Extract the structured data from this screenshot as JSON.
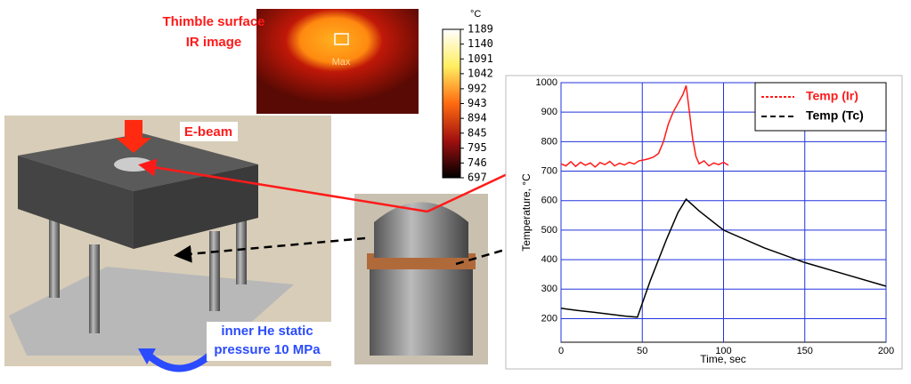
{
  "chart_data": [
    {
      "type": "line",
      "x_label": "Time, sec",
      "y_label": "Temperature, °C",
      "xlim": [
        0,
        200
      ],
      "ylim": [
        120,
        1000
      ],
      "xticks": [
        0,
        50,
        100,
        150,
        200
      ],
      "yticks": [
        200,
        300,
        400,
        500,
        600,
        700,
        800,
        900,
        1000
      ],
      "grid": true,
      "legend": "upper right",
      "series": [
        {
          "name": "Temp (Ir)",
          "color": "#ff1a1a",
          "x": [
            0,
            3,
            6,
            9,
            12,
            15,
            18,
            21,
            24,
            27,
            30,
            33,
            36,
            39,
            42,
            45,
            48,
            51,
            54,
            57,
            60,
            63,
            66,
            69,
            72,
            75,
            77,
            79,
            81,
            83,
            85,
            88,
            91,
            94,
            97,
            100,
            103
          ],
          "values": [
            725,
            718,
            732,
            716,
            730,
            720,
            728,
            714,
            729,
            722,
            733,
            718,
            727,
            721,
            730,
            724,
            735,
            738,
            742,
            748,
            760,
            800,
            860,
            900,
            930,
            960,
            990,
            900,
            810,
            750,
            725,
            735,
            718,
            728,
            722,
            730,
            720
          ]
        },
        {
          "name": "Temp (Tc)",
          "color": "#000000",
          "x": [
            0,
            10,
            20,
            30,
            40,
            47,
            55,
            65,
            72,
            77,
            85,
            100,
            125,
            150,
            175,
            200
          ],
          "values": [
            235,
            228,
            222,
            215,
            208,
            205,
            330,
            470,
            560,
            605,
            565,
            500,
            440,
            390,
            350,
            310
          ]
        }
      ]
    },
    {
      "type": "colorbar",
      "title": "°C",
      "ylim": [
        697,
        1189
      ],
      "yticks": [
        1189,
        1140,
        1091,
        1042,
        992,
        943,
        894,
        845,
        795,
        746,
        697
      ]
    }
  ],
  "annotations": {
    "ir_title": [
      "Thimble surface",
      "IR image"
    ],
    "max": "Max",
    "ebeam": "E-beam",
    "pressure": [
      "inner He static",
      "pressure 10 MPa"
    ]
  }
}
